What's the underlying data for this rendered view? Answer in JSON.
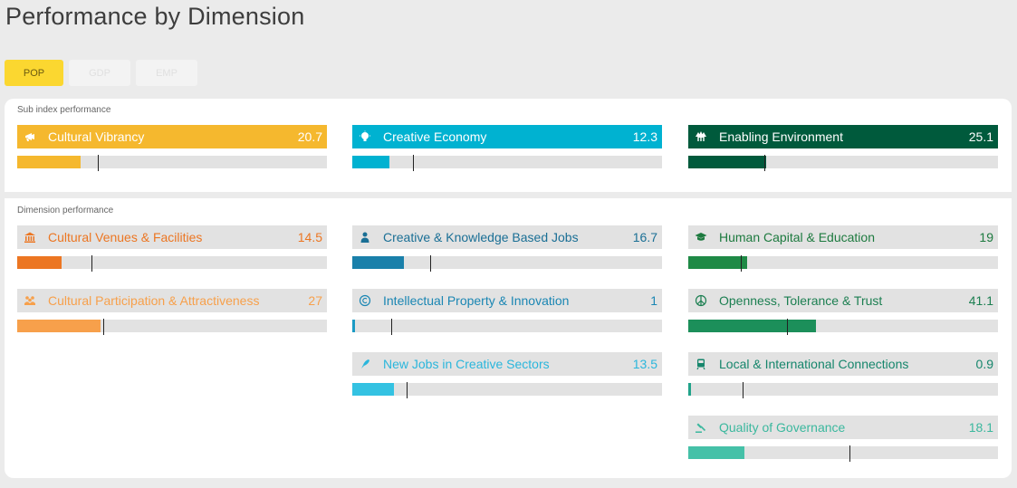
{
  "title": "Performance by Dimension",
  "tabs": [
    {
      "label": "POP",
      "active": true
    },
    {
      "label": "GDP",
      "active": false
    },
    {
      "label": "EMP",
      "active": false
    }
  ],
  "sub_index": {
    "label": "Sub index performance",
    "items": [
      {
        "name": "Cultural Vibrancy",
        "value": "20.7",
        "icon": "megaphone-icon",
        "color": "#f5b82e",
        "fill": 0.205,
        "marker": 0.26
      },
      {
        "name": "Creative Economy",
        "value": "12.3",
        "icon": "lightbulb-icon",
        "color": "#00b2d1",
        "fill": 0.12,
        "marker": 0.195
      },
      {
        "name": "Enabling Environment",
        "value": "25.1",
        "icon": "trees-icon",
        "color": "#005a3c",
        "fill": 0.25,
        "marker": 0.247
      }
    ]
  },
  "dimensions": {
    "label": "Dimension performance",
    "columns": [
      [
        {
          "name": "Cultural Venues & Facilities",
          "value": "14.5",
          "icon": "museum-icon",
          "color": "#ec7622",
          "text_color": "#ec7622",
          "fill": 0.143,
          "marker": 0.241
        },
        {
          "name": "Cultural Participation & Attractiveness",
          "value": "27",
          "icon": "people-icon",
          "color": "#f7a04b",
          "text_color": "#f7a04b",
          "fill": 0.27,
          "marker": 0.278
        }
      ],
      [
        {
          "name": "Creative & Knowledge Based Jobs",
          "value": "16.7",
          "icon": "person-icon",
          "color": "#1a80aa",
          "text_color": "#1a6f95",
          "fill": 0.167,
          "marker": 0.25
        },
        {
          "name": "Intellectual Property & Innovation",
          "value": "1",
          "icon": "copyright-icon",
          "color": "#1a9ac4",
          "text_color": "#1a86b3",
          "fill": 0.01,
          "marker": 0.125
        },
        {
          "name": "New Jobs in Creative Sectors",
          "value": "13.5",
          "icon": "rocket-icon",
          "color": "#34c2e2",
          "text_color": "#2ab6dc",
          "fill": 0.135,
          "marker": 0.175
        }
      ],
      [
        {
          "name": "Human Capital & Education",
          "value": "19",
          "icon": "graduation-cap-icon",
          "color": "#1f8a46",
          "text_color": "#1d7a3f",
          "fill": 0.19,
          "marker": 0.17
        },
        {
          "name": "Openness, Tolerance & Trust",
          "value": "41.1",
          "icon": "peace-icon",
          "color": "#1c8f5a",
          "text_color": "#1c7f51",
          "fill": 0.411,
          "marker": 0.32
        },
        {
          "name": "Local & International Connections",
          "value": "0.9",
          "icon": "train-icon",
          "color": "#21a38a",
          "text_color": "#16866c",
          "fill": 0.009,
          "marker": 0.175
        },
        {
          "name": "Quality of Governance",
          "value": "18.1",
          "icon": "gavel-icon",
          "color": "#45c1a8",
          "text_color": "#3bb89e",
          "fill": 0.181,
          "marker": 0.52
        }
      ]
    ]
  }
}
